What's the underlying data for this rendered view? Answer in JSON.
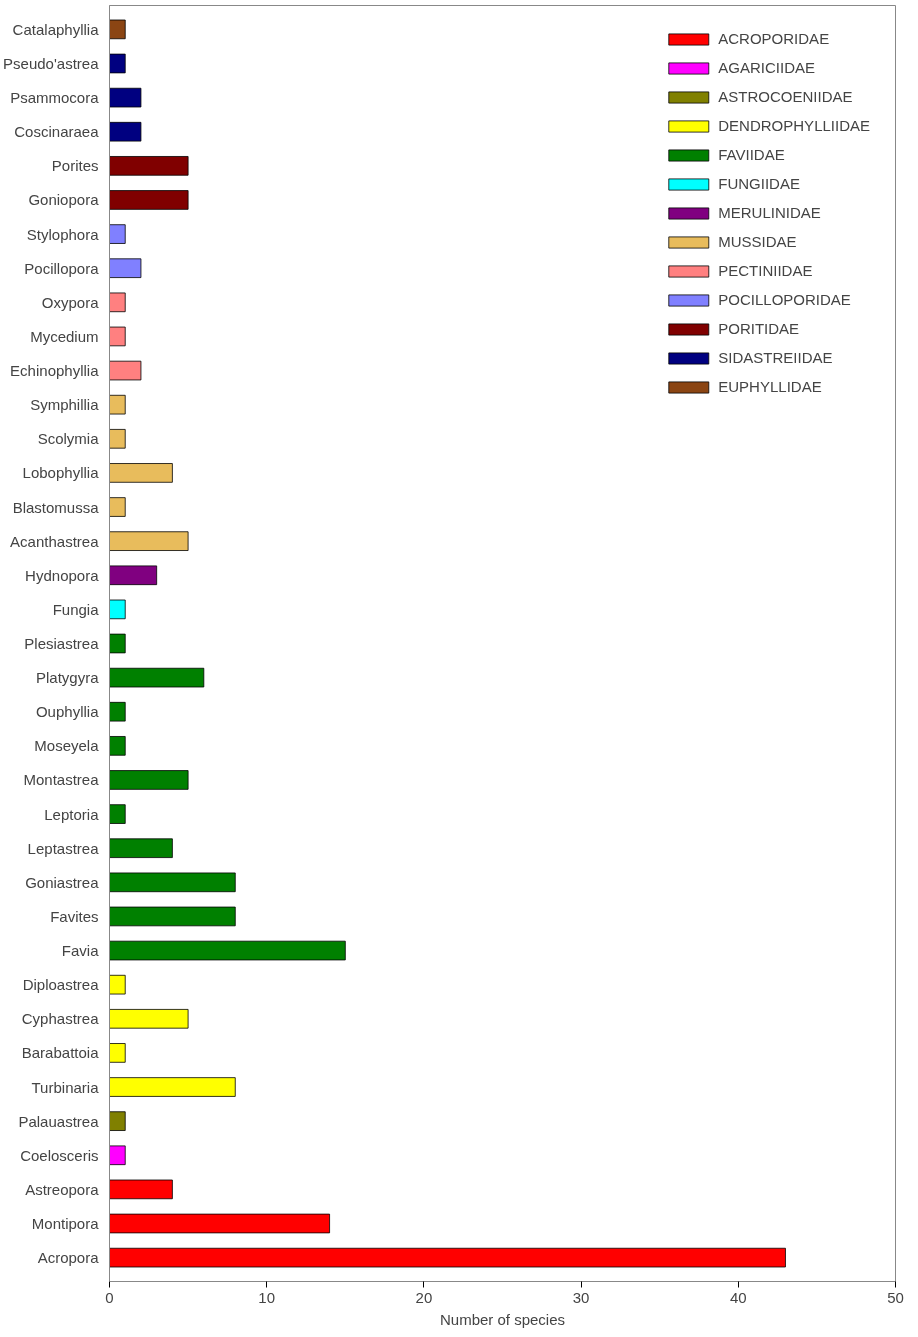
{
  "chart_data": {
    "type": "bar",
    "orientation": "horizontal",
    "xlabel": "Number of species",
    "categories": [
      "Catalaphyllia",
      "Pseudo'astrea",
      "Psammocora",
      "Coscinaraea",
      "Porites",
      "Goniopora",
      "Stylophora",
      "Pocillopora",
      "Oxypora",
      "Mycedium",
      "Echinophyllia",
      "Symphillia",
      "Scolymia",
      "Lobophyllia",
      "Blastomussa",
      "Acanthastrea",
      "Hydnopora",
      "Fungia",
      "Plesiastrea",
      "Platygyra",
      "Ouphyllia",
      "Moseyela",
      "Montastrea",
      "Leptoria",
      "Leptastrea",
      "Goniastrea",
      "Favites",
      "Favia",
      "Diploastrea",
      "Cyphastrea",
      "Barabattoia",
      "Turbinaria",
      "Palauastrea",
      "Coelosceris",
      "Astreopora",
      "Montipora",
      "Acropora"
    ],
    "series": [
      {
        "name": "ACROPORIDAE",
        "color": "#ff0000",
        "values": [
          null,
          null,
          null,
          null,
          null,
          null,
          null,
          null,
          null,
          null,
          null,
          null,
          null,
          null,
          null,
          null,
          null,
          null,
          null,
          null,
          null,
          null,
          null,
          null,
          null,
          null,
          null,
          null,
          null,
          null,
          null,
          null,
          null,
          null,
          4,
          14,
          43
        ]
      },
      {
        "name": "AGARICIIDAE",
        "color": "#ff00ff",
        "values": [
          null,
          null,
          null,
          null,
          null,
          null,
          null,
          null,
          null,
          null,
          null,
          null,
          null,
          null,
          null,
          null,
          null,
          null,
          null,
          null,
          null,
          null,
          null,
          null,
          null,
          null,
          null,
          null,
          null,
          null,
          null,
          null,
          null,
          1,
          null,
          null,
          null
        ]
      },
      {
        "name": "ASTROCOENIIDAE",
        "color": "#808000",
        "values": [
          null,
          null,
          null,
          null,
          null,
          null,
          null,
          null,
          null,
          null,
          null,
          null,
          null,
          null,
          null,
          null,
          null,
          null,
          null,
          null,
          null,
          null,
          null,
          null,
          null,
          null,
          null,
          null,
          null,
          null,
          null,
          null,
          1,
          null,
          null,
          null,
          null
        ]
      },
      {
        "name": "DENDROPHYLLIIDAE",
        "color": "#ffff00",
        "values": [
          null,
          null,
          null,
          null,
          null,
          null,
          null,
          null,
          null,
          null,
          null,
          null,
          null,
          null,
          null,
          null,
          null,
          null,
          null,
          null,
          null,
          null,
          null,
          null,
          null,
          null,
          null,
          null,
          1,
          5,
          1,
          8,
          null,
          null,
          null,
          null,
          null
        ]
      },
      {
        "name": "FAVIIDAE",
        "color": "#008000",
        "values": [
          null,
          null,
          null,
          null,
          null,
          null,
          null,
          null,
          null,
          null,
          null,
          null,
          null,
          null,
          null,
          null,
          null,
          null,
          1,
          6,
          1,
          1,
          5,
          1,
          4,
          8,
          8,
          15,
          null,
          null,
          null,
          null,
          null,
          null,
          null,
          null,
          null
        ]
      },
      {
        "name": "FUNGIIDAE",
        "color": "#00ffff",
        "values": [
          null,
          null,
          null,
          null,
          null,
          null,
          null,
          null,
          null,
          null,
          null,
          null,
          null,
          null,
          null,
          null,
          null,
          1,
          null,
          null,
          null,
          null,
          null,
          null,
          null,
          null,
          null,
          null,
          null,
          null,
          null,
          null,
          null,
          null,
          null,
          null,
          null
        ]
      },
      {
        "name": "MERULINIDAE",
        "color": "#800080",
        "values": [
          null,
          null,
          null,
          null,
          null,
          null,
          null,
          null,
          null,
          null,
          null,
          null,
          null,
          null,
          null,
          null,
          3,
          null,
          null,
          null,
          null,
          null,
          null,
          null,
          null,
          null,
          null,
          null,
          null,
          null,
          null,
          null,
          null,
          null,
          null,
          null,
          null
        ]
      },
      {
        "name": "MUSSIDAE",
        "color": "#e8bc5c",
        "values": [
          null,
          null,
          null,
          null,
          null,
          null,
          null,
          null,
          null,
          null,
          null,
          1,
          1,
          4,
          1,
          5,
          null,
          null,
          null,
          null,
          null,
          null,
          null,
          null,
          null,
          null,
          null,
          null,
          null,
          null,
          null,
          null,
          null,
          null,
          null,
          null,
          null
        ]
      },
      {
        "name": "PECTINIIDAE",
        "color": "#ff8080",
        "values": [
          null,
          null,
          null,
          null,
          null,
          null,
          null,
          null,
          1,
          1,
          2,
          null,
          null,
          null,
          null,
          null,
          null,
          null,
          null,
          null,
          null,
          null,
          null,
          null,
          null,
          null,
          null,
          null,
          null,
          null,
          null,
          null,
          null,
          null,
          null,
          null,
          null
        ]
      },
      {
        "name": "POCILLOPORIDAE",
        "color": "#8080ff",
        "values": [
          null,
          null,
          null,
          null,
          null,
          null,
          1,
          2,
          null,
          null,
          null,
          null,
          null,
          null,
          null,
          null,
          null,
          null,
          null,
          null,
          null,
          null,
          null,
          null,
          null,
          null,
          null,
          null,
          null,
          null,
          null,
          null,
          null,
          null,
          null,
          null,
          null
        ]
      },
      {
        "name": "PORITIDAE",
        "color": "#800000",
        "values": [
          null,
          null,
          null,
          null,
          5,
          5,
          null,
          null,
          null,
          null,
          null,
          null,
          null,
          null,
          null,
          null,
          null,
          null,
          null,
          null,
          null,
          null,
          null,
          null,
          null,
          null,
          null,
          null,
          null,
          null,
          null,
          null,
          null,
          null,
          null,
          null,
          null
        ]
      },
      {
        "name": "SIDASTREIIDAE",
        "color": "#000080",
        "values": [
          null,
          1,
          2,
          2,
          null,
          null,
          null,
          null,
          null,
          null,
          null,
          null,
          null,
          null,
          null,
          null,
          null,
          null,
          null,
          null,
          null,
          null,
          null,
          null,
          null,
          null,
          null,
          null,
          null,
          null,
          null,
          null,
          null,
          null,
          null,
          null,
          null
        ]
      },
      {
        "name": "EUPHYLLIDAE",
        "color": "#8b4513",
        "values": [
          1,
          null,
          null,
          null,
          null,
          null,
          null,
          null,
          null,
          null,
          null,
          null,
          null,
          null,
          null,
          null,
          null,
          null,
          null,
          null,
          null,
          null,
          null,
          null,
          null,
          null,
          null,
          null,
          null,
          null,
          null,
          null,
          null,
          null,
          null,
          null,
          null
        ]
      }
    ],
    "xlim": [
      0,
      50
    ],
    "xticks": [
      0,
      10,
      20,
      30,
      40,
      50
    ],
    "legend": "top right"
  }
}
